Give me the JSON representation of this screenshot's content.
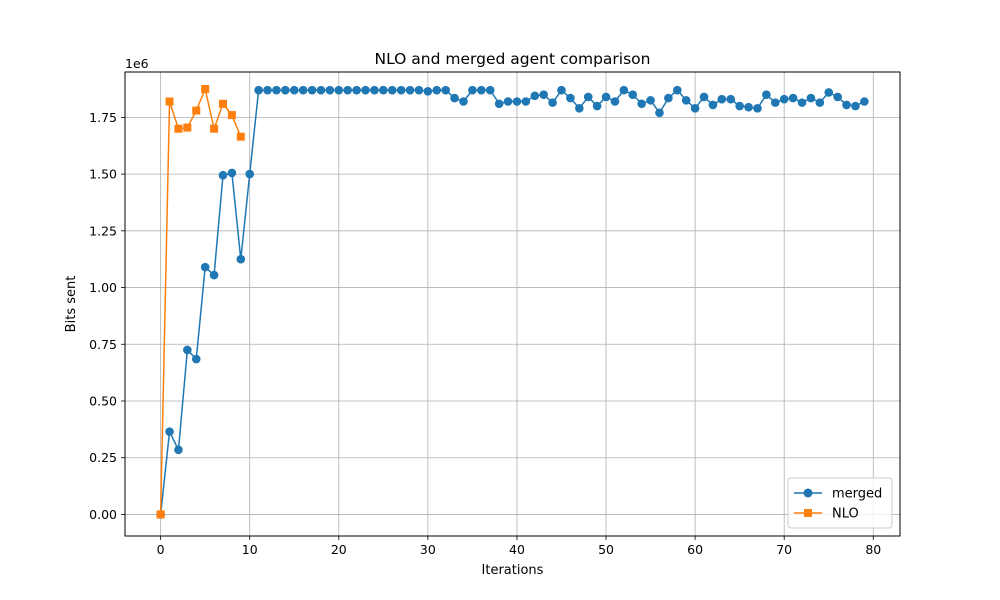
{
  "chart_data": {
    "type": "line",
    "title": "NLO and merged agent comparison",
    "xlabel": "Iterations",
    "ylabel": "Bits sent",
    "y_offset_label": "1e6",
    "xlim": [
      -4,
      83
    ],
    "ylim": [
      -0.095,
      1.95
    ],
    "xticks": [
      0,
      10,
      20,
      30,
      40,
      50,
      60,
      70,
      80
    ],
    "xtick_labels": [
      "0",
      "10",
      "20",
      "30",
      "40",
      "50",
      "60",
      "70",
      "80"
    ],
    "yticks": [
      0.0,
      0.25,
      0.5,
      0.75,
      1.0,
      1.25,
      1.5,
      1.75
    ],
    "ytick_labels": [
      "0.00",
      "0.25",
      "0.50",
      "0.75",
      "1.00",
      "1.25",
      "1.50",
      "1.75"
    ],
    "grid": true,
    "legend_position": "lower-right",
    "series": [
      {
        "name": "merged",
        "color": "#1f77b4",
        "marker": "circle",
        "x": [
          0,
          1,
          2,
          3,
          4,
          5,
          6,
          7,
          8,
          9,
          10,
          11,
          12,
          13,
          14,
          15,
          16,
          17,
          18,
          19,
          20,
          21,
          22,
          23,
          24,
          25,
          26,
          27,
          28,
          29,
          30,
          31,
          32,
          33,
          34,
          35,
          36,
          37,
          38,
          39,
          40,
          41,
          42,
          43,
          44,
          45,
          46,
          47,
          48,
          49,
          50,
          51,
          52,
          53,
          54,
          55,
          56,
          57,
          58,
          59,
          60,
          61,
          62,
          63,
          64,
          65,
          66,
          67,
          68,
          69,
          70,
          71,
          72,
          73,
          74,
          75,
          76,
          77,
          78,
          79
        ],
        "values": [
          0.0,
          0.365,
          0.285,
          0.725,
          0.685,
          1.09,
          1.055,
          1.495,
          1.505,
          1.125,
          1.5,
          1.87,
          1.87,
          1.87,
          1.87,
          1.87,
          1.87,
          1.87,
          1.87,
          1.87,
          1.87,
          1.87,
          1.87,
          1.87,
          1.87,
          1.87,
          1.87,
          1.87,
          1.87,
          1.87,
          1.865,
          1.87,
          1.87,
          1.835,
          1.82,
          1.87,
          1.87,
          1.87,
          1.81,
          1.82,
          1.82,
          1.82,
          1.845,
          1.85,
          1.815,
          1.87,
          1.835,
          1.79,
          1.84,
          1.8,
          1.84,
          1.82,
          1.87,
          1.85,
          1.81,
          1.825,
          1.77,
          1.835,
          1.87,
          1.825,
          1.79,
          1.84,
          1.805,
          1.83,
          1.83,
          1.8,
          1.795,
          1.79,
          1.85,
          1.815,
          1.83,
          1.835,
          1.815,
          1.835,
          1.815,
          1.86,
          1.84,
          1.805,
          1.8,
          1.82
        ]
      },
      {
        "name": "NLO",
        "color": "#ff7f0e",
        "marker": "square",
        "x": [
          0,
          1,
          2,
          3,
          4,
          5,
          6,
          7,
          8,
          9
        ],
        "values": [
          0.0,
          1.82,
          1.7,
          1.705,
          1.78,
          1.875,
          1.7,
          1.81,
          1.76,
          1.665
        ]
      }
    ]
  }
}
